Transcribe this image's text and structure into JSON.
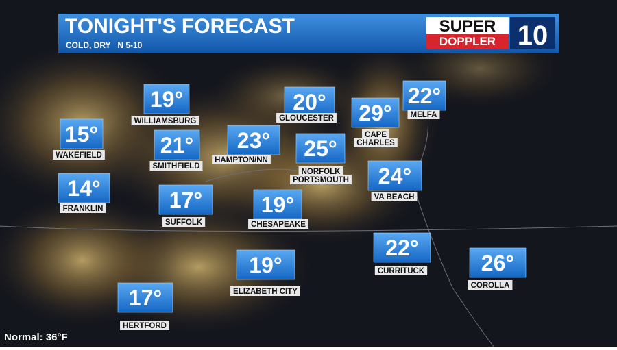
{
  "header": {
    "title": "TONIGHT'S FORECAST",
    "subtitle": "COLD, DRY   N 5-10"
  },
  "logo": {
    "line1": "SUPER",
    "line2": "DOPPLER",
    "number": "10"
  },
  "locations": [
    {
      "temp": "19°",
      "name": [
        "WILLIAMSBURG"
      ]
    },
    {
      "temp": "15°",
      "name": [
        "WAKEFIELD"
      ]
    },
    {
      "temp": "21°",
      "name": [
        "SMITHFIELD"
      ]
    },
    {
      "temp": "14°",
      "name": [
        "FRANKLIN"
      ]
    },
    {
      "temp": "17°",
      "name": [
        "SUFFOLK"
      ]
    },
    {
      "temp": "23°",
      "name": [
        "HAMPTON/NN"
      ]
    },
    {
      "temp": "20°",
      "name": [
        "GLOUCESTER"
      ]
    },
    {
      "temp": "29°",
      "name": [
        "CAPE",
        "CHARLES"
      ]
    },
    {
      "temp": "22°",
      "name": [
        "MELFA"
      ]
    },
    {
      "temp": "25°",
      "name": [
        "NORFOLK",
        "PORTSMOUTH"
      ]
    },
    {
      "temp": "19°",
      "name": [
        "CHESAPEAKE"
      ]
    },
    {
      "temp": "24°",
      "name": [
        "VA BEACH"
      ]
    },
    {
      "temp": "22°",
      "name": [
        "CURRITUCK"
      ]
    },
    {
      "temp": "19°",
      "name": [
        "ELIZABETH CITY"
      ]
    },
    {
      "temp": "26°",
      "name": [
        "COROLLA"
      ]
    },
    {
      "temp": "17°",
      "name": [
        "HERTFORD"
      ]
    }
  ],
  "footer": {
    "normal": "Normal: 36°F"
  }
}
